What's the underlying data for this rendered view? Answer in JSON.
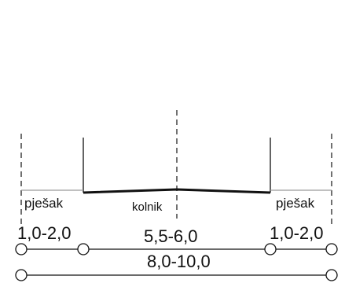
{
  "diagram": {
    "labels": {
      "left_sidewalk": "pješak",
      "roadway": "kolnik",
      "right_sidewalk": "pješak"
    },
    "dimensions": {
      "left_sidewalk_width": "1,0-2,0",
      "roadway_width": "5,5-6,0",
      "right_sidewalk_width": "1,0-2,0",
      "total_width": "8,0-10,0"
    },
    "colors": {
      "line": "#111111",
      "sidewalk_line": "#9a9a9a"
    }
  }
}
